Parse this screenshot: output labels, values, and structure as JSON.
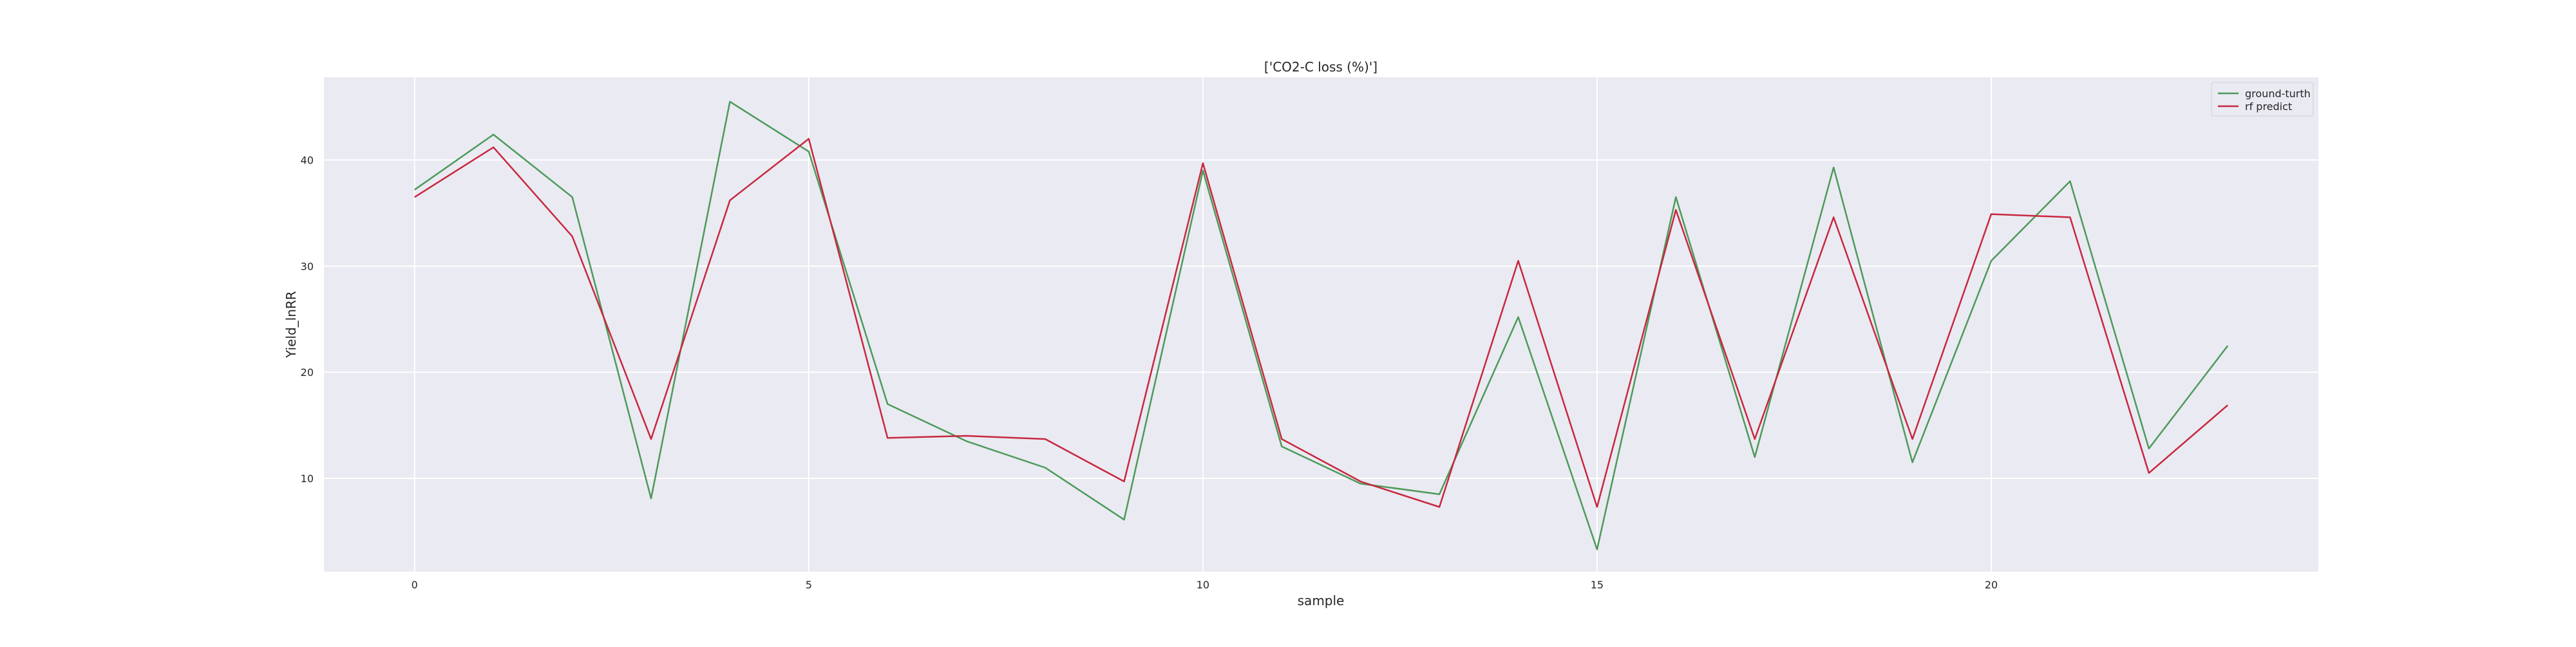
{
  "chart_data": {
    "type": "line",
    "title": "['CO2-C loss (%)']",
    "xlabel": "sample",
    "ylabel": "Yield_lnRR",
    "xlim": [
      -1.15,
      24.15
    ],
    "ylim": [
      1.2,
      47.8
    ],
    "xticks": [
      0,
      5,
      10,
      15,
      20
    ],
    "yticks": [
      10,
      20,
      30,
      40
    ],
    "grid": true,
    "legend_position": "top-right",
    "x": [
      0,
      1,
      2,
      3,
      4,
      5,
      6,
      7,
      8,
      9,
      10,
      11,
      12,
      13,
      14,
      15,
      16,
      17,
      18,
      19,
      20,
      21,
      22,
      23
    ],
    "series": [
      {
        "name": "ground-turth",
        "color": "#4c9a5a",
        "values": [
          37.2,
          42.4,
          36.5,
          8.1,
          45.5,
          40.8,
          17.0,
          13.5,
          11.0,
          6.1,
          39.0,
          13.0,
          9.5,
          8.5,
          25.2,
          3.3,
          36.5,
          12.0,
          39.3,
          11.5,
          30.5,
          38.0,
          12.8,
          22.5
        ]
      },
      {
        "name": "rf predict",
        "color": "#c7283e",
        "values": [
          36.5,
          41.2,
          32.8,
          13.7,
          36.2,
          42.0,
          13.8,
          14.0,
          13.7,
          9.7,
          39.7,
          13.7,
          9.7,
          7.3,
          30.5,
          7.3,
          35.3,
          13.7,
          34.6,
          13.7,
          34.9,
          34.6,
          10.5,
          16.9
        ]
      }
    ]
  }
}
